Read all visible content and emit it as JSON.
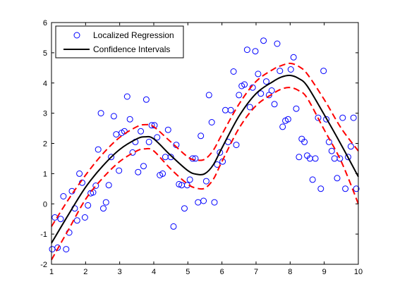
{
  "chart_data": {
    "type": "scatter",
    "title": "",
    "xlabel": "",
    "ylabel": "",
    "xlim": [
      1,
      10
    ],
    "ylim": [
      -2,
      6
    ],
    "xticks": [
      1,
      2,
      3,
      4,
      5,
      6,
      7,
      8,
      9,
      10
    ],
    "yticks": [
      -2,
      -1,
      0,
      1,
      2,
      3,
      4,
      5,
      6
    ],
    "grid": false,
    "legend": {
      "placement": "top-left"
    },
    "colors": {
      "points": "#0000ff",
      "fit": "#000000",
      "bands": "#ff0000"
    },
    "series": [
      {
        "name": "Localized Regression",
        "kind": "scatter",
        "x": [
          1.02,
          1.1,
          1.18,
          1.27,
          1.35,
          1.43,
          1.52,
          1.6,
          1.68,
          1.75,
          1.82,
          1.9,
          1.98,
          2.07,
          2.15,
          2.22,
          2.3,
          2.37,
          2.45,
          2.52,
          2.6,
          2.68,
          2.75,
          2.83,
          2.9,
          2.98,
          3.06,
          3.14,
          3.22,
          3.3,
          3.38,
          3.46,
          3.54,
          3.62,
          3.7,
          3.78,
          3.86,
          3.94,
          4.02,
          4.1,
          4.18,
          4.26,
          4.34,
          4.42,
          4.5,
          4.58,
          4.66,
          4.74,
          4.82,
          4.9,
          4.98,
          5.06,
          5.14,
          5.22,
          5.3,
          5.38,
          5.46,
          5.54,
          5.62,
          5.7,
          5.78,
          5.86,
          5.94,
          6.02,
          6.1,
          6.18,
          6.26,
          6.34,
          6.42,
          6.5,
          6.58,
          6.66,
          6.74,
          6.82,
          6.9,
          6.98,
          7.06,
          7.14,
          7.22,
          7.3,
          7.38,
          7.46,
          7.54,
          7.62,
          7.7,
          7.78,
          7.86,
          7.94,
          8.02,
          8.1,
          8.18,
          8.26,
          8.34,
          8.42,
          8.5,
          8.58,
          8.66,
          8.74,
          8.82,
          8.9,
          8.98,
          9.06,
          9.14,
          9.22,
          9.3,
          9.38,
          9.46,
          9.54,
          9.62,
          9.7,
          9.78,
          9.86,
          9.94
        ],
        "y": [
          -1.5,
          -0.45,
          -1.45,
          -0.5,
          0.25,
          -1.5,
          -0.95,
          0.42,
          -0.15,
          -0.55,
          1.0,
          0.7,
          -0.45,
          -0.05,
          0.35,
          0.38,
          0.6,
          1.8,
          3.0,
          -0.15,
          0.05,
          0.62,
          1.55,
          2.9,
          2.3,
          1.1,
          2.35,
          2.4,
          3.55,
          2.8,
          1.7,
          2.05,
          1.05,
          2.4,
          1.25,
          3.45,
          2.05,
          2.6,
          2.6,
          2.2,
          0.95,
          1.0,
          1.55,
          2.45,
          1.55,
          -0.75,
          1.95,
          0.65,
          0.62,
          -0.15,
          0.62,
          0.8,
          1.5,
          1.5,
          0.05,
          2.25,
          0.1,
          0.75,
          3.6,
          2.7,
          0.05,
          1.3,
          1.7,
          1.4,
          3.1,
          2.05,
          3.1,
          4.38,
          1.95,
          3.6,
          3.9,
          3.95,
          5.1,
          3.2,
          3.85,
          5.05,
          4.3,
          3.65,
          5.4,
          4.05,
          3.6,
          3.75,
          3.3,
          5.3,
          4.4,
          2.55,
          2.75,
          2.8,
          4.45,
          4.85,
          3.15,
          1.55,
          2.15,
          2.05,
          1.6,
          1.5,
          0.8,
          1.5,
          2.85,
          0.5,
          4.4,
          2.8,
          2.05,
          1.75,
          1.5,
          0.85,
          1.5,
          2.85,
          0.5,
          1.55,
          1.9,
          2.85,
          0.5
        ]
      },
      {
        "name": "Confidence Intervals",
        "kind": "line",
        "role": "fit",
        "x": [
          1,
          1.5,
          2,
          2.5,
          3,
          3.5,
          3.75,
          4,
          4.5,
          5,
          5.25,
          5.5,
          5.75,
          6,
          6.5,
          7,
          7.5,
          7.75,
          8,
          8.25,
          8.5,
          9,
          9.5,
          10
        ],
        "y": [
          -1.3,
          -0.35,
          0.55,
          1.25,
          1.8,
          2.15,
          2.22,
          2.15,
          1.6,
          1.1,
          0.98,
          1.0,
          1.3,
          1.85,
          2.9,
          3.65,
          4.05,
          4.2,
          4.25,
          4.15,
          3.9,
          2.95,
          1.95,
          0.9
        ]
      },
      {
        "kind": "dashed",
        "role": "upper-band",
        "x": [
          1,
          1.5,
          2,
          2.5,
          3,
          3.5,
          3.75,
          4,
          4.5,
          5,
          5.25,
          5.5,
          5.75,
          6,
          6.5,
          7,
          7.5,
          7.75,
          8,
          8.25,
          8.5,
          9,
          9.5,
          10
        ],
        "y": [
          -0.75,
          0.15,
          0.95,
          1.65,
          2.2,
          2.55,
          2.62,
          2.55,
          2.05,
          1.55,
          1.45,
          1.48,
          1.78,
          2.3,
          3.3,
          4.05,
          4.45,
          4.58,
          4.65,
          4.55,
          4.3,
          3.45,
          2.5,
          1.75
        ]
      },
      {
        "kind": "dashed",
        "role": "lower-band",
        "x": [
          1,
          1.5,
          2,
          2.5,
          3,
          3.5,
          3.75,
          4,
          4.5,
          5,
          5.25,
          5.5,
          5.75,
          6,
          6.5,
          7,
          7.5,
          7.75,
          8,
          8.25,
          8.5,
          9,
          9.5,
          10
        ],
        "y": [
          -1.85,
          -0.85,
          0.15,
          0.85,
          1.4,
          1.75,
          1.82,
          1.75,
          1.15,
          0.65,
          0.52,
          0.52,
          0.82,
          1.4,
          2.5,
          3.25,
          3.65,
          3.8,
          3.85,
          3.75,
          3.5,
          2.45,
          1.4,
          0.0
        ]
      }
    ]
  }
}
